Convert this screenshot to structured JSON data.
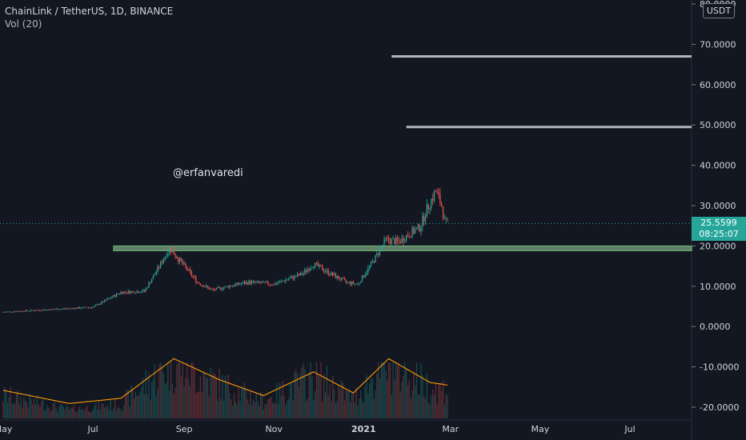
{
  "header": {
    "symbol_line": "ChainLink / TetherUS, 1D, BINANCE",
    "indicator_line": "Vol (20)"
  },
  "watermark": "@erfanvaredi",
  "currency_button": "USDT",
  "price_tag": {
    "price": "25.5599",
    "countdown": "08:25:07"
  },
  "colors": {
    "background": "#131722",
    "up_candle": "#26a69a",
    "down_candle": "#ef5350",
    "volume_ma": "#ff9800",
    "support_zone": "#a5d6a7",
    "level_line": "#b2b5be"
  },
  "chart_data": {
    "type": "candlestick",
    "y_axis": {
      "ticks": [
        "80.0000",
        "70.0000",
        "60.0000",
        "50.0000",
        "40.0000",
        "30.0000",
        "20.0000",
        "10.0000",
        "0.0000",
        "-10.0000",
        "-20.0000"
      ],
      "tick_values": [
        80,
        70,
        60,
        50,
        40,
        30,
        20,
        10,
        0,
        -10,
        -20
      ],
      "range": [
        -22,
        81
      ]
    },
    "x_axis": {
      "ticks": [
        {
          "label": "May",
          "date": "2020-05-01",
          "bold": false
        },
        {
          "label": "Jul",
          "date": "2020-07-01",
          "bold": false
        },
        {
          "label": "Sep",
          "date": "2020-09-01",
          "bold": false
        },
        {
          "label": "Nov",
          "date": "2020-11-01",
          "bold": false
        },
        {
          "label": "2021",
          "date": "2021-01-01",
          "bold": true
        },
        {
          "label": "Mar",
          "date": "2021-03-01",
          "bold": false
        },
        {
          "label": "May",
          "date": "2021-05-01",
          "bold": false
        },
        {
          "label": "Jul",
          "date": "2021-07-01",
          "bold": false
        }
      ]
    },
    "price_series": [
      {
        "date": "2020-05-01",
        "close": 3.6
      },
      {
        "date": "2020-06-01",
        "close": 4.2
      },
      {
        "date": "2020-07-01",
        "close": 4.8
      },
      {
        "date": "2020-07-20",
        "close": 8.5
      },
      {
        "date": "2020-08-05",
        "close": 8.8
      },
      {
        "date": "2020-08-16",
        "close": 15.5
      },
      {
        "date": "2020-08-22",
        "close": 19.5
      },
      {
        "date": "2020-09-01",
        "close": 15.0
      },
      {
        "date": "2020-09-10",
        "close": 11.0
      },
      {
        "date": "2020-09-20",
        "close": 9.0
      },
      {
        "date": "2020-10-01",
        "close": 10.0
      },
      {
        "date": "2020-10-15",
        "close": 11.0
      },
      {
        "date": "2020-11-01",
        "close": 10.5
      },
      {
        "date": "2020-11-20",
        "close": 13.0
      },
      {
        "date": "2020-11-28",
        "close": 15.5
      },
      {
        "date": "2020-12-10",
        "close": 13.0
      },
      {
        "date": "2020-12-20",
        "close": 11.0
      },
      {
        "date": "2020-12-28",
        "close": 10.5
      },
      {
        "date": "2021-01-08",
        "close": 16.5
      },
      {
        "date": "2021-01-16",
        "close": 21.5
      },
      {
        "date": "2021-01-25",
        "close": 21.0
      },
      {
        "date": "2021-02-01",
        "close": 23.0
      },
      {
        "date": "2021-02-08",
        "close": 24.5
      },
      {
        "date": "2021-02-14",
        "close": 30.0
      },
      {
        "date": "2021-02-19",
        "close": 33.5
      },
      {
        "date": "2021-02-23",
        "close": 30.0
      },
      {
        "date": "2021-02-25",
        "close": 26.0
      },
      {
        "date": "2021-02-27",
        "close": 25.56
      }
    ],
    "volume_ma_series": [
      {
        "date": "2020-05-01",
        "value": 0.35
      },
      {
        "date": "2020-06-15",
        "value": 0.1
      },
      {
        "date": "2020-07-20",
        "value": 0.2
      },
      {
        "date": "2020-08-25",
        "value": 0.95
      },
      {
        "date": "2020-09-25",
        "value": 0.55
      },
      {
        "date": "2020-10-25",
        "value": 0.25
      },
      {
        "date": "2020-11-28",
        "value": 0.7
      },
      {
        "date": "2020-12-25",
        "value": 0.3
      },
      {
        "date": "2021-01-18",
        "value": 0.95
      },
      {
        "date": "2021-02-15",
        "value": 0.5
      },
      {
        "date": "2021-02-27",
        "value": 0.45
      }
    ],
    "horizontal_levels": [
      {
        "price": 67,
        "from": "2021-01-20",
        "to": "2021-09-15"
      },
      {
        "price": 49.5,
        "from": "2021-01-30",
        "to": "2021-09-15"
      }
    ],
    "support_zone": {
      "low": 18.8,
      "high": 20.0,
      "from": "2020-07-15",
      "to": "2021-08-12"
    },
    "last_price": 25.5599,
    "grid": false
  }
}
